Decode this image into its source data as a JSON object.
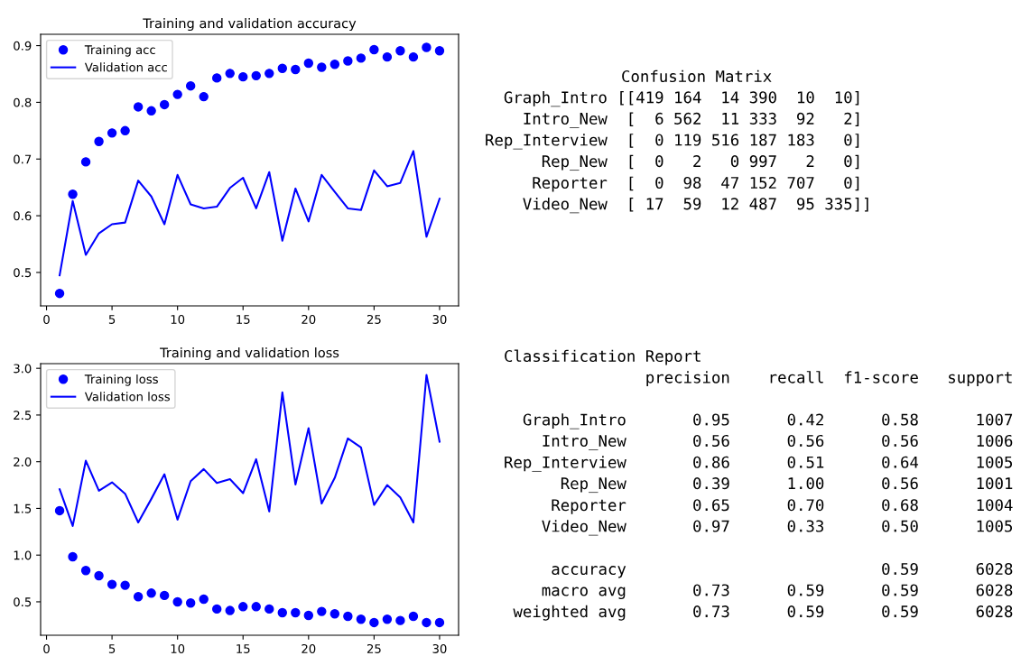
{
  "chart_data": [
    {
      "type": "line",
      "title": "Training and validation accuracy",
      "x": [
        1,
        2,
        3,
        4,
        5,
        6,
        7,
        8,
        9,
        10,
        11,
        12,
        13,
        14,
        15,
        16,
        17,
        18,
        19,
        20,
        21,
        22,
        23,
        24,
        25,
        26,
        27,
        28,
        29,
        30
      ],
      "series": [
        {
          "name": "Training acc",
          "type": "scatter",
          "marker": "circle",
          "color": "#0000ff",
          "values": [
            0.463,
            0.638,
            0.695,
            0.731,
            0.746,
            0.75,
            0.792,
            0.785,
            0.796,
            0.814,
            0.829,
            0.81,
            0.843,
            0.851,
            0.845,
            0.847,
            0.851,
            0.86,
            0.858,
            0.869,
            0.862,
            0.867,
            0.873,
            0.878,
            0.893,
            0.88,
            0.891,
            0.88,
            0.897,
            0.891
          ]
        },
        {
          "name": "Validation acc",
          "type": "line",
          "line_style": "solid",
          "color": "#0000ff",
          "values": [
            0.495,
            0.626,
            0.531,
            0.569,
            0.585,
            0.588,
            0.662,
            0.634,
            0.585,
            0.672,
            0.62,
            0.613,
            0.616,
            0.649,
            0.667,
            0.613,
            0.677,
            0.556,
            0.648,
            0.59,
            0.672,
            0.642,
            0.613,
            0.61,
            0.68,
            0.652,
            0.658,
            0.714,
            0.563,
            0.63
          ]
        }
      ],
      "xlim": [
        -0.45,
        31.45
      ],
      "xticks": [
        0,
        5,
        10,
        15,
        20,
        25,
        30
      ],
      "ylim": [
        0.441,
        0.92
      ],
      "yticks": [
        0.5,
        0.6,
        0.7,
        0.8,
        0.9
      ],
      "legend": "top left",
      "grid": false
    },
    {
      "type": "other",
      "title": "Confusion Matrix",
      "annotations": [
        "  Graph_Intro [[419 164  14 390  10  10]\n    Intro_New  [  6 562  11 333  92   2]\nRep_Interview  [  0 119 516 187 183   0]\n      Rep_New  [  0   2   0 997   2   0]\n     Reporter  [  0  98  47 152 707   0]\n    Video_New  [ 17  59  12 487  95 335]]"
      ]
    },
    {
      "type": "line",
      "title": "Training and validation loss",
      "x": [
        1,
        2,
        3,
        4,
        5,
        6,
        7,
        8,
        9,
        10,
        11,
        12,
        13,
        14,
        15,
        16,
        17,
        18,
        19,
        20,
        21,
        22,
        23,
        24,
        25,
        26,
        27,
        28,
        29,
        30
      ],
      "series": [
        {
          "name": "Training loss",
          "type": "scatter",
          "marker": "circle",
          "color": "#0000ff",
          "values": [
            1.476,
            0.983,
            0.835,
            0.78,
            0.687,
            0.677,
            0.555,
            0.593,
            0.568,
            0.5,
            0.487,
            0.529,
            0.423,
            0.407,
            0.448,
            0.448,
            0.423,
            0.384,
            0.384,
            0.355,
            0.397,
            0.371,
            0.345,
            0.313,
            0.278,
            0.313,
            0.3,
            0.345,
            0.278,
            0.278
          ]
        },
        {
          "name": "Validation loss",
          "type": "line",
          "line_style": "solid",
          "color": "#0000ff",
          "values": [
            1.705,
            1.312,
            2.011,
            1.689,
            1.779,
            1.657,
            1.35,
            1.602,
            1.866,
            1.38,
            1.792,
            1.921,
            1.773,
            1.814,
            1.663,
            2.027,
            1.467,
            2.742,
            1.756,
            2.359,
            1.553,
            1.827,
            2.249,
            2.153,
            1.537,
            1.75,
            1.618,
            1.35,
            2.929,
            2.214
          ]
        }
      ],
      "xlim": [
        -0.45,
        31.45
      ],
      "xticks": [
        0,
        5,
        10,
        15,
        20,
        25,
        30
      ],
      "ylim": [
        0.142,
        3.05
      ],
      "yticks": [
        0.5,
        {
          "value": 1,
          "label": "1.0"
        },
        1.5,
        {
          "value": 2,
          "label": "2.0"
        },
        2.5,
        {
          "value": 3,
          "label": "3.0"
        }
      ],
      "legend": "top left",
      "grid": false
    },
    {
      "type": "other",
      "title": "Classification Report",
      "annotations": [
        "               precision    recall  f1-score   support",
        "  Graph_Intro       0.95      0.42      0.58      1007\n    Intro_New       0.56      0.56      0.56      1006\nRep_Interview       0.86      0.51      0.64      1005\n      Rep_New       0.39      1.00      0.56      1001\n     Reporter       0.65      0.70      0.68      1004\n    Video_New       0.97      0.33      0.50      1005",
        "     accuracy                           0.59      6028\n    macro avg       0.73      0.59      0.59      6028\n weighted avg       0.73      0.59      0.59      6028"
      ]
    }
  ]
}
